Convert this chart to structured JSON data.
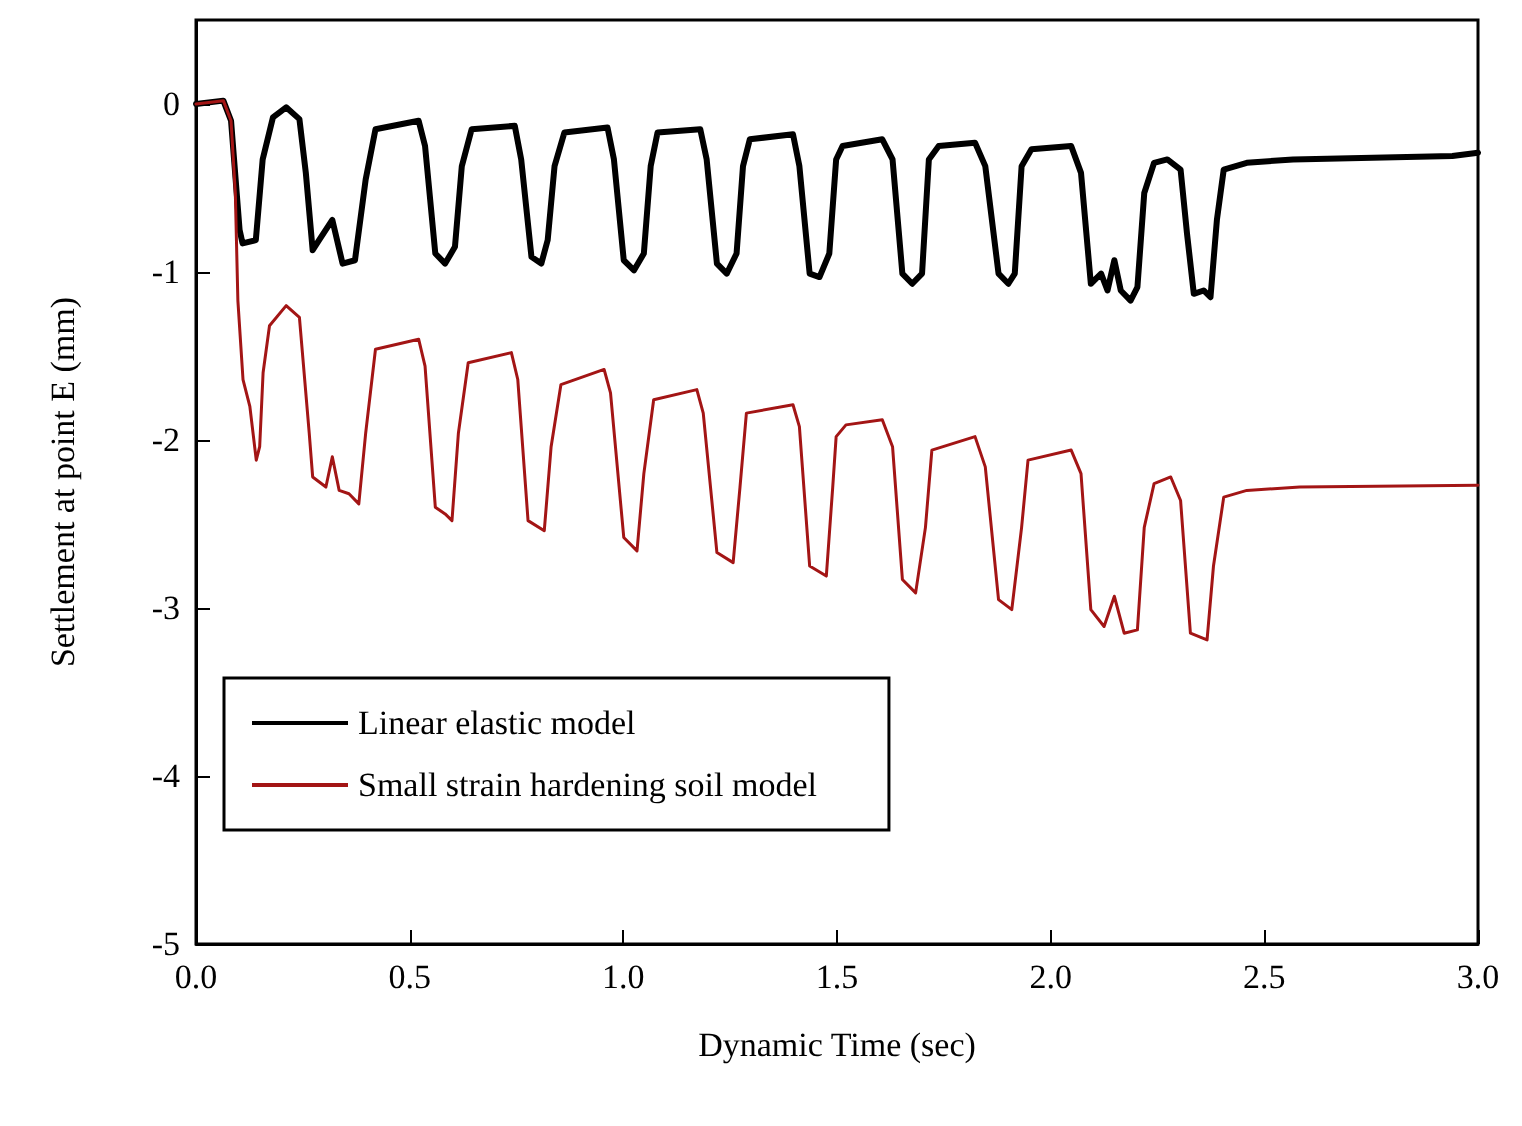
{
  "chart_data": {
    "type": "line",
    "xlabel": "Dynamic Time (sec)",
    "ylabel": "Settlement at point E (mm)",
    "xlim": [
      0,
      3
    ],
    "xticks": [
      {
        "value": 0,
        "label": "0.0"
      },
      {
        "value": 0.5,
        "label": "0.5"
      },
      {
        "value": 1,
        "label": "1.0"
      },
      {
        "value": 1.5,
        "label": "1.5"
      },
      {
        "value": 2,
        "label": "2.0"
      },
      {
        "value": 2.5,
        "label": "2.5"
      },
      {
        "value": 3,
        "label": "3.0"
      }
    ],
    "ylim": [
      -5,
      0.5
    ],
    "yticks": [
      -5,
      -4,
      -3,
      -2,
      -1,
      0
    ],
    "grid": false,
    "legend": "bottom left",
    "marker": "none",
    "line_style": "solid",
    "series": [
      {
        "name": "Linear elastic model",
        "color": "#000000",
        "x": [
          0,
          0.064,
          0.082,
          0.102,
          0.109,
          0.14,
          0.156,
          0.18,
          0.211,
          0.242,
          0.257,
          0.273,
          0.288,
          0.319,
          0.343,
          0.372,
          0.397,
          0.42,
          0.521,
          0.536,
          0.56,
          0.583,
          0.606,
          0.622,
          0.645,
          0.746,
          0.761,
          0.785,
          0.808,
          0.823,
          0.839,
          0.862,
          0.963,
          0.978,
          1.001,
          1.025,
          1.048,
          1.064,
          1.08,
          1.18,
          1.195,
          1.219,
          1.242,
          1.265,
          1.28,
          1.296,
          1.397,
          1.412,
          1.436,
          1.459,
          1.482,
          1.498,
          1.513,
          1.606,
          1.63,
          1.653,
          1.676,
          1.699,
          1.715,
          1.738,
          1.823,
          1.847,
          1.878,
          1.901,
          1.916,
          1.932,
          1.955,
          2.048,
          2.071,
          2.094,
          2.118,
          2.133,
          2.149,
          2.164,
          2.187,
          2.203,
          2.219,
          2.242,
          2.273,
          2.304,
          2.319,
          2.335,
          2.358,
          2.374,
          2.389,
          2.405,
          2.459,
          2.567,
          2.94,
          3.0
        ],
        "values": [
          0,
          0.02,
          -0.1,
          -0.75,
          -0.83,
          -0.81,
          -0.33,
          -0.08,
          -0.02,
          -0.09,
          -0.41,
          -0.87,
          -0.81,
          -0.69,
          -0.95,
          -0.93,
          -0.45,
          -0.15,
          -0.1,
          -0.25,
          -0.89,
          -0.95,
          -0.85,
          -0.37,
          -0.15,
          -0.13,
          -0.33,
          -0.91,
          -0.95,
          -0.81,
          -0.37,
          -0.17,
          -0.14,
          -0.33,
          -0.93,
          -0.99,
          -0.89,
          -0.37,
          -0.17,
          -0.15,
          -0.33,
          -0.95,
          -1.01,
          -0.89,
          -0.37,
          -0.21,
          -0.18,
          -0.37,
          -1.01,
          -1.03,
          -0.89,
          -0.33,
          -0.25,
          -0.21,
          -0.33,
          -1.01,
          -1.07,
          -1.01,
          -0.33,
          -0.25,
          -0.23,
          -0.37,
          -1.01,
          -1.07,
          -1.01,
          -0.37,
          -0.27,
          -0.25,
          -0.41,
          -1.07,
          -1.01,
          -1.11,
          -0.93,
          -1.11,
          -1.17,
          -1.09,
          -0.53,
          -0.35,
          -0.33,
          -0.39,
          -0.77,
          -1.13,
          -1.11,
          -1.15,
          -0.69,
          -0.39,
          -0.35,
          -0.33,
          -0.31,
          -0.29
        ]
      },
      {
        "name": "Small strain hardening soil model",
        "color": "#a31515",
        "x": [
          0,
          0.064,
          0.082,
          0.092,
          0.098,
          0.11,
          0.126,
          0.141,
          0.149,
          0.157,
          0.172,
          0.211,
          0.242,
          0.265,
          0.273,
          0.304,
          0.319,
          0.335,
          0.358,
          0.381,
          0.397,
          0.42,
          0.521,
          0.536,
          0.56,
          0.583,
          0.599,
          0.614,
          0.637,
          0.738,
          0.753,
          0.777,
          0.815,
          0.831,
          0.854,
          0.955,
          0.97,
          1.001,
          1.032,
          1.048,
          1.071,
          1.172,
          1.187,
          1.219,
          1.257,
          1.273,
          1.288,
          1.397,
          1.412,
          1.436,
          1.475,
          1.49,
          1.498,
          1.521,
          1.606,
          1.63,
          1.653,
          1.684,
          1.707,
          1.722,
          1.823,
          1.847,
          1.878,
          1.909,
          1.932,
          1.947,
          2.048,
          2.071,
          2.094,
          2.125,
          2.149,
          2.172,
          2.203,
          2.219,
          2.242,
          2.281,
          2.304,
          2.327,
          2.366,
          2.381,
          2.405,
          2.459,
          2.583,
          3.0
        ],
        "values": [
          0,
          0.02,
          -0.1,
          -0.53,
          -1.17,
          -1.64,
          -1.8,
          -2.12,
          -2.04,
          -1.6,
          -1.32,
          -1.2,
          -1.27,
          -1.96,
          -2.22,
          -2.28,
          -2.1,
          -2.3,
          -2.32,
          -2.38,
          -1.96,
          -1.46,
          -1.4,
          -1.56,
          -2.4,
          -2.44,
          -2.48,
          -1.96,
          -1.54,
          -1.48,
          -1.64,
          -2.48,
          -2.54,
          -2.04,
          -1.67,
          -1.58,
          -1.72,
          -2.58,
          -2.66,
          -2.2,
          -1.76,
          -1.7,
          -1.84,
          -2.67,
          -2.73,
          -2.28,
          -1.84,
          -1.79,
          -1.92,
          -2.75,
          -2.81,
          -2.28,
          -1.98,
          -1.91,
          -1.88,
          -2.04,
          -2.83,
          -2.91,
          -2.52,
          -2.06,
          -1.98,
          -2.16,
          -2.95,
          -3.01,
          -2.52,
          -2.12,
          -2.06,
          -2.2,
          -3.01,
          -3.11,
          -2.93,
          -3.15,
          -3.13,
          -2.52,
          -2.26,
          -2.22,
          -2.36,
          -3.15,
          -3.19,
          -2.75,
          -2.34,
          -2.3,
          -2.28,
          -2.27
        ]
      }
    ]
  }
}
